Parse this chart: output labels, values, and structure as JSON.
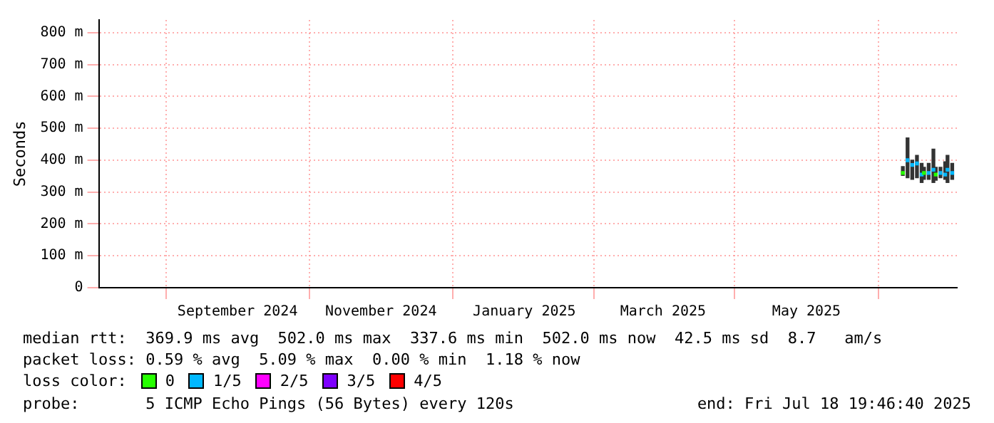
{
  "chart_data": {
    "type": "bar",
    "ylabel": "Seconds",
    "x": [
      "2025-06-25",
      "2025-06-27",
      "2025-06-29",
      "2025-07-01",
      "2025-07-03",
      "2025-07-04",
      "2025-07-06",
      "2025-07-08",
      "2025-07-09",
      "2025-07-11",
      "2025-07-13",
      "2025-07-14",
      "2025-07-16"
    ],
    "xlim": [
      "2024-07-18",
      "2025-07-18"
    ],
    "xticks": [
      {
        "value": "2024-09-15",
        "label": "September 2024"
      },
      {
        "value": "2024-11-15",
        "label": "November 2024"
      },
      {
        "value": "2025-01-15",
        "label": "January 2025"
      },
      {
        "value": "2025-03-15",
        "label": "March 2025"
      },
      {
        "value": "2025-05-15",
        "label": "May 2025"
      }
    ],
    "ylim": [
      0,
      840
    ],
    "yticks": [
      0,
      {
        "value": 100,
        "label": "100 m"
      },
      {
        "value": 200,
        "label": "200 m"
      },
      {
        "value": 300,
        "label": "300 m"
      },
      {
        "value": 400,
        "label": "400 m"
      },
      {
        "value": 500,
        "label": "500 m"
      },
      {
        "value": 600,
        "label": "600 m"
      },
      {
        "value": 700,
        "label": "700 m"
      },
      {
        "value": 800,
        "label": "800 m"
      }
    ],
    "series": [
      {
        "color": "#333333",
        "base": [
          352,
          345,
          340,
          345,
          330,
          340,
          340,
          330,
          337,
          345,
          340,
          330,
          340
        ],
        "values": [
          28,
          125,
          60,
          70,
          60,
          38,
          50,
          105,
          41,
          33,
          55,
          85,
          50
        ]
      },
      {
        "type": "scatter",
        "name": "0",
        "color": "#26ff00",
        "values": [
          360,
          null,
          null,
          null,
          null,
          360,
          null,
          null,
          355,
          null,
          null,
          null,
          null
        ]
      },
      {
        "type": "scatter",
        "name": "1/5",
        "color": "#00b8ff",
        "values": [
          null,
          400,
          385,
          390,
          355,
          null,
          360,
          370,
          null,
          360,
          355,
          370,
          360
        ]
      },
      {
        "type": "scatter",
        "name": "2/5",
        "color": "#ff00ff",
        "values": [
          null,
          null,
          null,
          null,
          null,
          null,
          null,
          null,
          null,
          null,
          null,
          null,
          null
        ]
      },
      {
        "type": "scatter",
        "name": "3/5",
        "color": "#7e00ff",
        "values": [
          null,
          null,
          null,
          null,
          null,
          null,
          null,
          null,
          null,
          null,
          null,
          null,
          null
        ]
      },
      {
        "type": "scatter",
        "name": "4/5",
        "color": "#ff0000",
        "values": [
          null,
          null,
          null,
          null,
          null,
          null,
          null,
          null,
          null,
          null,
          null,
          null,
          null
        ]
      }
    ],
    "marker": "square",
    "grid": true,
    "legend": "bottom left",
    "legend_title": "loss color:",
    "annotations": [
      "median rtt:  369.9 ms avg  502.0 ms max  337.6 ms min  502.0 ms now  42.5 ms sd  8.7   am/s",
      "packet loss: 0.59 % avg  5.09 % max  0.00 % min  1.18 % now",
      "probe:       5 ICMP Echo Pings (56 Bytes) every 120s",
      "end: Fri Jul 18 19:46:40 2025"
    ]
  }
}
